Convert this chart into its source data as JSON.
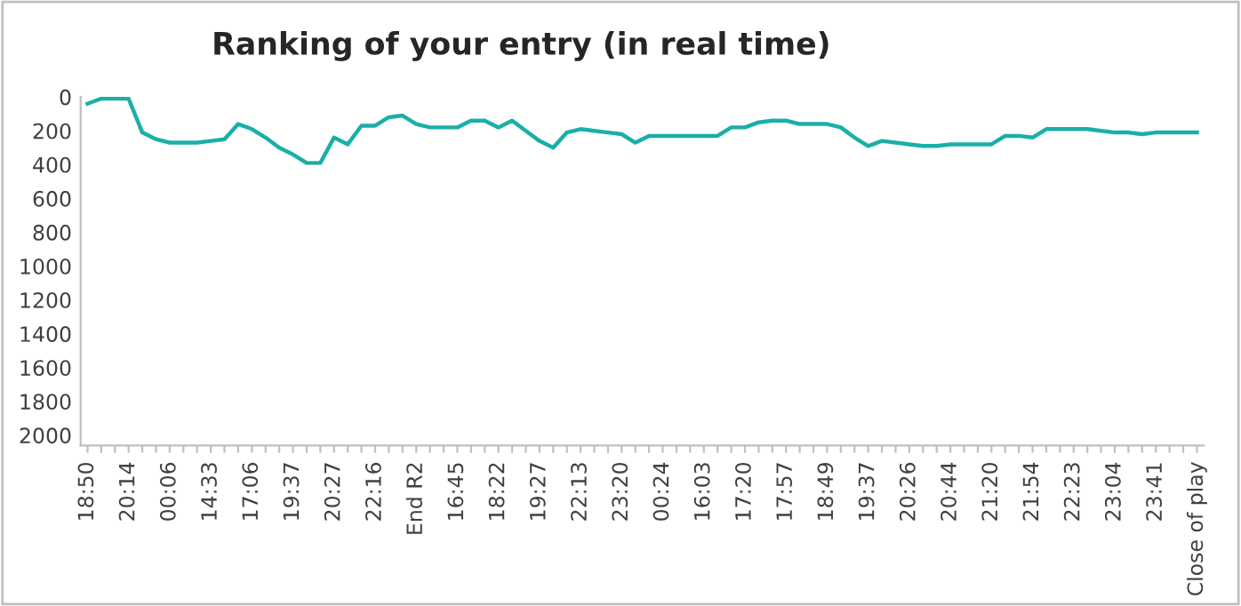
{
  "chart_data": {
    "type": "line",
    "title": "Ranking of your entry (in real time)",
    "categories": [
      "18:50",
      null,
      null,
      "20:14",
      null,
      null,
      "00:06",
      null,
      null,
      "14:33",
      null,
      null,
      "17:06",
      null,
      null,
      "19:37",
      null,
      null,
      "20:27",
      null,
      null,
      "22:16",
      null,
      null,
      "End R2",
      null,
      null,
      "16:45",
      null,
      null,
      "18:22",
      null,
      null,
      "19:27",
      null,
      null,
      "22:13",
      null,
      null,
      "23:20",
      null,
      null,
      "00:24",
      null,
      null,
      "16:03",
      null,
      null,
      "17:20",
      null,
      null,
      "17:57",
      null,
      null,
      "18:49",
      null,
      null,
      "19:37",
      null,
      null,
      "20:26",
      null,
      null,
      "20:44",
      null,
      null,
      "21:20",
      null,
      null,
      "21:54",
      null,
      null,
      "22:23",
      null,
      null,
      "23:04",
      null,
      null,
      "23:41",
      null,
      null,
      "Close of play"
    ],
    "series": [
      {
        "color": "#1aafa8",
        "values": [
          40,
          10,
          10,
          10,
          210,
          250,
          270,
          270,
          270,
          260,
          250,
          160,
          190,
          240,
          300,
          340,
          390,
          390,
          240,
          280,
          170,
          170,
          120,
          110,
          160,
          180,
          180,
          180,
          140,
          140,
          180,
          140,
          200,
          260,
          300,
          210,
          190,
          200,
          210,
          220,
          270,
          230,
          230,
          230,
          230,
          230,
          230,
          180,
          180,
          150,
          140,
          140,
          160,
          160,
          160,
          180,
          240,
          290,
          260,
          270,
          280,
          290,
          290,
          280,
          280,
          280,
          280,
          230,
          230,
          240,
          190,
          190,
          190,
          190,
          200,
          210,
          210,
          220,
          210,
          210,
          210,
          210
        ]
      }
    ],
    "ylim": [
      2060,
      0
    ],
    "yticks": [
      0,
      200,
      400,
      600,
      800,
      1000,
      1200,
      1400,
      1600,
      1800,
      2000
    ],
    "marker": "none",
    "line_style": "solid"
  }
}
